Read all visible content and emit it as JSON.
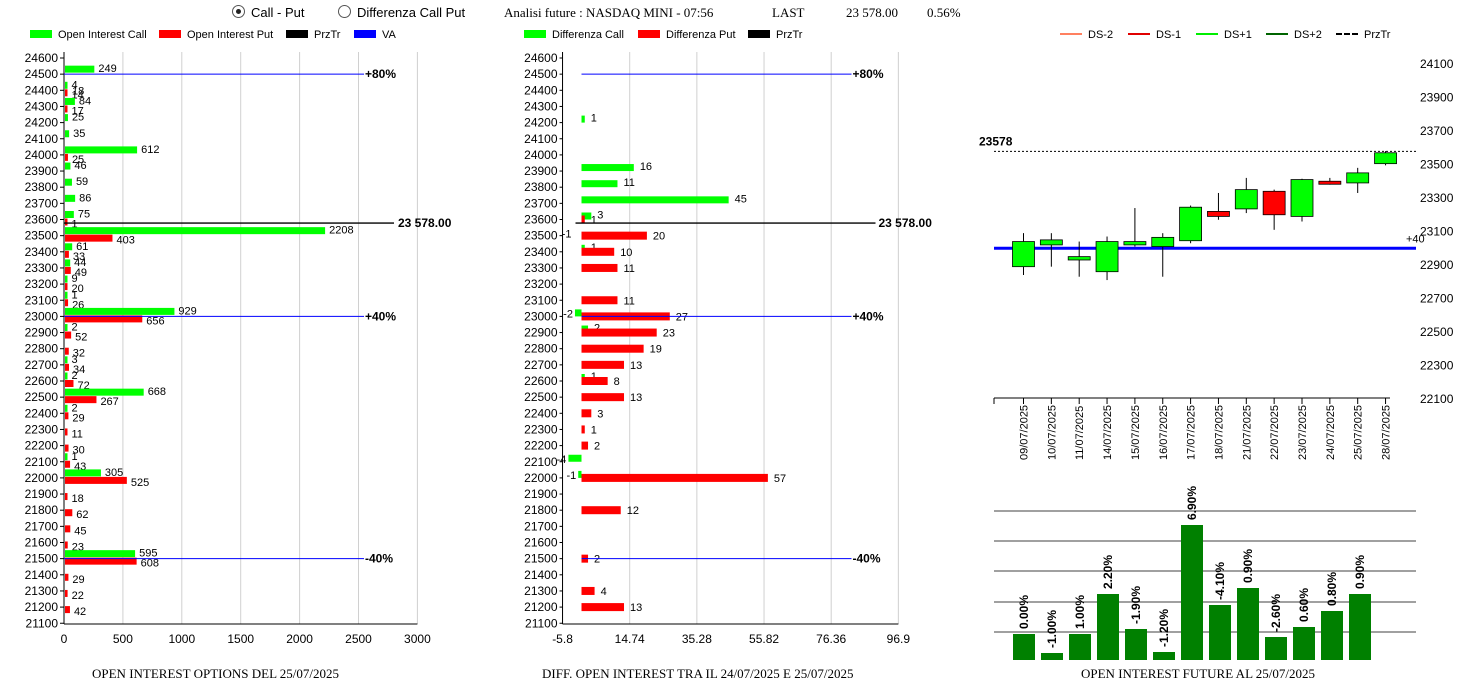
{
  "header": {
    "radio_call_put": "Call - Put",
    "radio_diff": "Differenza Call Put",
    "analysis_title": "Analisi future : NASDAQ MINI - 07:56",
    "last_label": "LAST",
    "last_value": "23 578.00",
    "last_pct": "0.56%"
  },
  "legends": {
    "left": [
      "Open Interest Call",
      "Open Interest Put",
      "PrzTr",
      "VA"
    ],
    "middle": [
      "Differenza Call",
      "Differenza Put",
      "PrzTr"
    ],
    "right": [
      "DS-2",
      "DS-1",
      "DS+1",
      "DS+2",
      "PrzTr"
    ]
  },
  "colors": {
    "call": "#00ff00",
    "put": "#ff0000",
    "price": "#000000",
    "va": "#0000ff",
    "future_bar": "#008000",
    "ds_minus2": "#ff8060",
    "ds_plus2": "#006400"
  },
  "footers": {
    "left": "OPEN INTEREST OPTIONS DEL 25/07/2025",
    "middle": "DIFF. OPEN INTEREST TRA IL 24/07/2025 E 25/07/2025",
    "right": "OPEN INTEREST FUTURE AL 25/07/2025"
  },
  "chart_data": [
    {
      "type": "bar",
      "orientation": "horizontal",
      "strikes": [
        24600,
        24500,
        24400,
        24300,
        24200,
        24100,
        24000,
        23900,
        23800,
        23700,
        23600,
        23500,
        23400,
        23300,
        23200,
        23100,
        23000,
        22900,
        22800,
        22700,
        22600,
        22500,
        22400,
        22300,
        22200,
        22100,
        22000,
        21900,
        21800,
        21700,
        21600,
        21500,
        21400,
        21300,
        21200,
        21100
      ],
      "call": [
        null,
        249,
        4,
        84,
        25,
        35,
        612,
        46,
        59,
        86,
        75,
        2208,
        61,
        44,
        9,
        1,
        929,
        2,
        null,
        3,
        2,
        668,
        2,
        null,
        null,
        1,
        305,
        null,
        null,
        null,
        null,
        595,
        null,
        null,
        null,
        null
      ],
      "put": [
        null,
        null,
        14,
        17,
        null,
        null,
        25,
        null,
        null,
        null,
        1,
        403,
        33,
        49,
        20,
        26,
        656,
        52,
        32,
        34,
        72,
        267,
        29,
        11,
        30,
        43,
        525,
        18,
        62,
        45,
        23,
        608,
        29,
        22,
        42,
        null
      ],
      "put_extra_labels": {
        "24400": "18"
      },
      "xticks": [
        0,
        500,
        1000,
        1500,
        2000,
        2500,
        3000
      ],
      "xlim": [
        0,
        3000
      ],
      "price_label": "23 578.00",
      "price": 23578,
      "va_lines": [
        {
          "strike": 24500,
          "label": "+80%"
        },
        {
          "strike": 23000,
          "label": "+40%"
        },
        {
          "strike": 21500,
          "label": "-40%"
        }
      ]
    },
    {
      "type": "bar",
      "orientation": "horizontal",
      "strikes": [
        24600,
        24500,
        24400,
        24300,
        24200,
        24100,
        24000,
        23900,
        23800,
        23700,
        23600,
        23500,
        23400,
        23300,
        23200,
        23100,
        23000,
        22900,
        22800,
        22700,
        22600,
        22500,
        22400,
        22300,
        22200,
        22100,
        22000,
        21900,
        21800,
        21700,
        21600,
        21500,
        21400,
        21300,
        21200,
        21100
      ],
      "call_diff": [
        null,
        null,
        null,
        null,
        1,
        null,
        null,
        16,
        11,
        45,
        3,
        null,
        1,
        null,
        null,
        null,
        -2,
        2,
        null,
        null,
        1,
        null,
        null,
        null,
        null,
        -4,
        -1,
        null,
        null,
        null,
        null,
        null,
        null,
        null,
        null,
        null
      ],
      "put_diff": [
        null,
        null,
        null,
        null,
        null,
        null,
        null,
        null,
        null,
        null,
        1,
        20,
        10,
        11,
        null,
        11,
        27,
        23,
        19,
        13,
        8,
        13,
        3,
        1,
        2,
        null,
        57,
        null,
        12,
        null,
        null,
        2,
        null,
        4,
        13,
        null
      ],
      "call_diff_labels": {
        "23500": "-1"
      },
      "xticks": [
        "-5.8",
        "14.74",
        "35.28",
        "55.82",
        "76.36",
        "96.9"
      ],
      "xlim": [
        -5.8,
        96.9
      ],
      "price_label": "23 578.00",
      "va_lines": [
        {
          "strike": 24500,
          "label": "+80%"
        },
        {
          "strike": 23000,
          "label": "+40%"
        },
        {
          "strike": 21500,
          "label": "-40%"
        }
      ]
    },
    {
      "type": "candlestick",
      "dates": [
        "09/07/2025",
        "10/07/2025",
        "11/07/2025",
        "14/07/2025",
        "15/07/2025",
        "16/07/2025",
        "17/07/2025",
        "18/07/2025",
        "21/07/2025",
        "22/07/2025",
        "23/07/2025",
        "24/07/2025",
        "25/07/2025",
        "28/07/2025"
      ],
      "open": [
        22890,
        23020,
        22930,
        22860,
        23020,
        23010,
        23045,
        23220,
        23235,
        23340,
        23190,
        23400,
        23390,
        23505
      ],
      "close": [
        23040,
        23050,
        22950,
        23040,
        23040,
        23065,
        23245,
        23190,
        23350,
        23200,
        23410,
        23390,
        23450,
        23570
      ],
      "high": [
        23090,
        23090,
        23040,
        23070,
        23240,
        23090,
        23255,
        23330,
        23420,
        23350,
        23415,
        23420,
        23480,
        23580
      ],
      "low": [
        22840,
        22890,
        22830,
        22810,
        23010,
        22830,
        23030,
        23170,
        23210,
        23110,
        23160,
        23380,
        23330,
        23495
      ],
      "yticks": [
        24100,
        23900,
        23700,
        23500,
        23300,
        23100,
        22900,
        22700,
        22500,
        22300,
        22100
      ],
      "ylim": [
        22100,
        24100
      ],
      "price_label": "23578",
      "price": 23578,
      "va_level": 23000,
      "va_label": "+40"
    },
    {
      "type": "bar",
      "values": [
        0.0,
        -1.0,
        1.0,
        2.2,
        -1.9,
        -1.2,
        6.9,
        -4.1,
        0.9,
        -2.6,
        0.6,
        0.8,
        0.9
      ],
      "labels": [
        "0.00%",
        "-1.00%",
        "1.00%",
        "2.20%",
        "-1.90%",
        "-1.20%",
        "6.90%",
        "-4.10%",
        "0.90%",
        "-2.60%",
        "0.60%",
        "0.80%",
        "0.90%"
      ]
    }
  ]
}
